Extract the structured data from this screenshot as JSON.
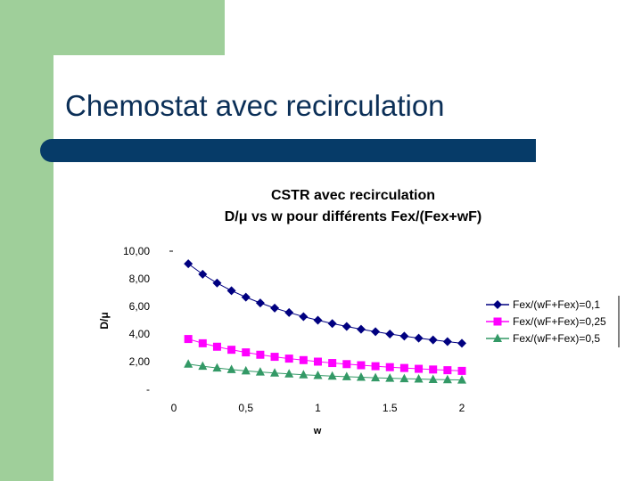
{
  "slide": {
    "title": "Chemostat avec recirculation"
  },
  "colors": {
    "green_band": "#9fcf9a",
    "title_text": "#0b2f57",
    "title_rule": "#063b68"
  },
  "chart_data": {
    "type": "line",
    "title_line1": "CSTR avec recirculation",
    "title_line2": "D/μ vs w  pour différents Fex/(Fex+wF)",
    "xlabel": "w",
    "ylabel": "D/μ",
    "xlim": [
      0,
      2
    ],
    "ylim": [
      0,
      10
    ],
    "x_ticks": [
      {
        "value": 0,
        "label": "0"
      },
      {
        "value": 0.5,
        "label": "0,5"
      },
      {
        "value": 1,
        "label": "1"
      },
      {
        "value": 1.5,
        "label": "1.5"
      },
      {
        "value": 2,
        "label": "2"
      }
    ],
    "y_ticks": [
      {
        "value": 0,
        "label": "-"
      },
      {
        "value": 2,
        "label": "2,00"
      },
      {
        "value": 4,
        "label": "4,00"
      },
      {
        "value": 6,
        "label": "6,00"
      },
      {
        "value": 8,
        "label": "8,00"
      },
      {
        "value": 10,
        "label": "10,00"
      }
    ],
    "x": [
      0.1,
      0.2,
      0.3,
      0.4,
      0.5,
      0.6,
      0.7,
      0.8,
      0.9,
      1.0,
      1.1,
      1.2,
      1.3,
      1.4,
      1.5,
      1.6,
      1.7,
      1.8,
      1.9,
      2.0
    ],
    "series": [
      {
        "name": "Fex/(wF+Fex)=0,1",
        "color": "#000080",
        "marker": "diamond",
        "values": [
          9.09,
          8.33,
          7.69,
          7.14,
          6.67,
          6.25,
          5.88,
          5.56,
          5.26,
          5.0,
          4.76,
          4.55,
          4.35,
          4.17,
          4.0,
          3.85,
          3.7,
          3.57,
          3.45,
          3.33
        ]
      },
      {
        "name": "Fex/(wF+Fex)=0,25",
        "color": "#ff00ff",
        "marker": "square",
        "values": [
          3.64,
          3.33,
          3.08,
          2.86,
          2.67,
          2.5,
          2.35,
          2.22,
          2.11,
          2.0,
          1.9,
          1.82,
          1.74,
          1.67,
          1.6,
          1.54,
          1.48,
          1.43,
          1.38,
          1.33
        ]
      },
      {
        "name": "Fex/(wF+Fex)=0,5",
        "color": "#339966",
        "marker": "triangle",
        "values": [
          1.82,
          1.67,
          1.54,
          1.43,
          1.33,
          1.25,
          1.18,
          1.11,
          1.05,
          1.0,
          0.95,
          0.91,
          0.87,
          0.83,
          0.8,
          0.77,
          0.74,
          0.71,
          0.69,
          0.67
        ]
      }
    ]
  }
}
